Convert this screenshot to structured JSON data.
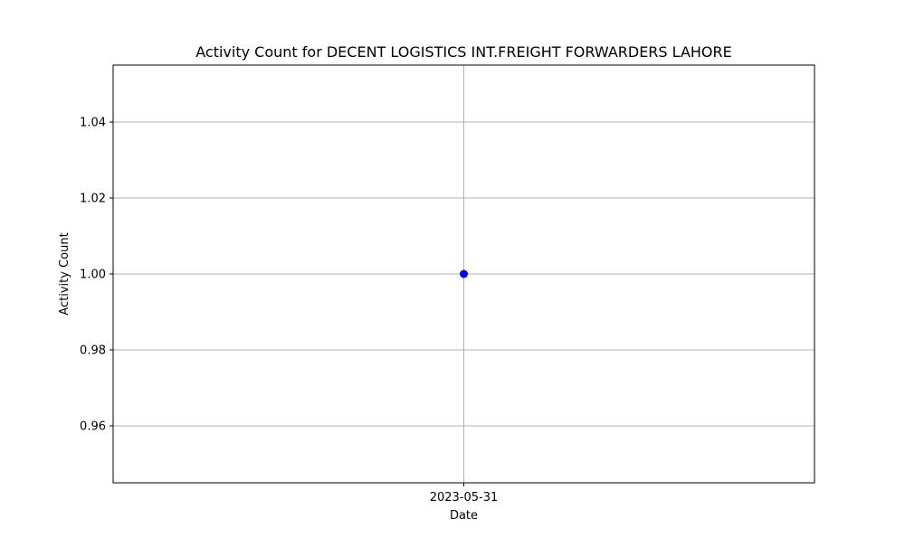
{
  "chart_data": {
    "type": "line",
    "title": "Activity Count for DECENT LOGISTICS INT.FREIGHT FORWARDERS LAHORE",
    "xlabel": "Date",
    "ylabel": "Activity Count",
    "x": [
      "2023-05-31"
    ],
    "x_ticks": [
      "2023-05-31"
    ],
    "series": [
      {
        "values": [
          1.0
        ],
        "color": "#0000ff",
        "marker": "circle"
      }
    ],
    "ylim": [
      0.945,
      1.055
    ],
    "y_ticks": [
      "0.96",
      "0.98",
      "1.00",
      "1.02",
      "1.04"
    ],
    "grid": true
  }
}
